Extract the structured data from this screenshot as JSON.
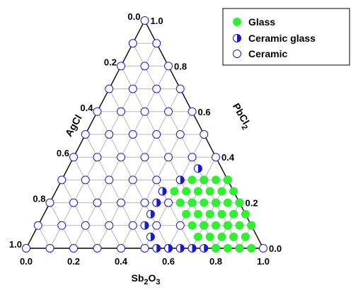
{
  "chart_data": {
    "type": "scatter",
    "subtype": "ternary",
    "title": "",
    "axes": {
      "bottom": {
        "label_main": "Sb",
        "label_sub1": "2",
        "label_mid": "O",
        "label_sub2": "3",
        "ticks": [
          "0.0",
          "0.2",
          "0.4",
          "0.6",
          "0.8",
          "1.0"
        ]
      },
      "left": {
        "label": "AgCl",
        "ticks": [
          "0.0",
          "0.2",
          "0.4",
          "0.6",
          "0.8",
          "1.0"
        ]
      },
      "right": {
        "label_main": "PbCl",
        "label_sub": "2",
        "ticks": [
          "1.0",
          "0.8",
          "0.6",
          "0.4",
          "0.2",
          "0.0"
        ]
      }
    },
    "grid": true,
    "grid_step": 0.1,
    "legend": {
      "placement": "top-right",
      "items": [
        {
          "name": "Glass",
          "marker": "filled"
        },
        {
          "name": "Ceramic glass",
          "marker": "half"
        },
        {
          "name": "Ceramic",
          "marker": "open"
        }
      ]
    },
    "colors": {
      "glass": "#33ee33",
      "ceramic": "#1a1acc",
      "axis": "#000000",
      "grid": "#b8b8b8"
    },
    "composition_step": 0.05,
    "series": [
      {
        "name": "Glass",
        "points": [
          [
            0.8,
            0.2
          ],
          [
            0.75,
            0.25
          ],
          [
            0.7,
            0.3
          ],
          [
            0.85,
            0.15
          ],
          [
            0.8,
            0.15
          ],
          [
            0.75,
            0.2
          ],
          [
            0.7,
            0.25
          ],
          [
            0.65,
            0.3
          ],
          [
            0.9,
            0.1
          ],
          [
            0.85,
            0.1
          ],
          [
            0.8,
            0.1
          ],
          [
            0.75,
            0.15
          ],
          [
            0.7,
            0.2
          ],
          [
            0.65,
            0.25
          ],
          [
            0.6,
            0.3
          ],
          [
            0.9,
            0.05
          ],
          [
            0.85,
            0.05
          ],
          [
            0.8,
            0.05
          ],
          [
            0.75,
            0.1
          ],
          [
            0.7,
            0.15
          ],
          [
            0.65,
            0.2
          ],
          [
            0.6,
            0.25
          ],
          [
            0.55,
            0.3
          ],
          [
            0.95,
            0.0
          ],
          [
            0.9,
            0.0
          ],
          [
            0.85,
            0.0
          ],
          [
            0.8,
            0.0
          ],
          [
            0.75,
            0.05
          ],
          [
            0.7,
            0.1
          ],
          [
            0.65,
            0.15
          ],
          [
            0.6,
            0.2
          ],
          [
            0.55,
            0.25
          ],
          [
            0.7,
            0.05
          ],
          [
            0.65,
            0.1
          ],
          [
            0.6,
            0.15
          ],
          [
            0.55,
            0.2
          ],
          [
            0.5,
            0.25
          ]
        ]
      },
      {
        "name": "Ceramic glass",
        "points": [
          [
            0.7,
            0.0
          ],
          [
            0.75,
            0.0
          ],
          [
            0.65,
            0.0
          ],
          [
            0.6,
            0.0
          ],
          [
            0.55,
            0.0
          ],
          [
            0.5,
            0.05
          ],
          [
            0.45,
            0.1
          ],
          [
            0.45,
            0.15
          ],
          [
            0.45,
            0.2
          ],
          [
            0.45,
            0.25
          ],
          [
            0.5,
            0.3
          ],
          [
            0.55,
            0.35
          ]
        ]
      },
      {
        "name": "Ceramic",
        "points": [
          [
            0.0,
            0.0
          ],
          [
            0.1,
            0.0
          ],
          [
            0.2,
            0.0
          ],
          [
            0.3,
            0.0
          ],
          [
            0.4,
            0.0
          ],
          [
            0.5,
            0.0
          ],
          [
            0.6,
            0.0
          ],
          [
            0.7,
            0.0
          ],
          [
            0.8,
            0.0
          ],
          [
            0.9,
            0.0
          ],
          [
            1.0,
            0.0
          ],
          [
            0.0,
            0.1
          ],
          [
            0.1,
            0.1
          ],
          [
            0.2,
            0.1
          ],
          [
            0.3,
            0.1
          ],
          [
            0.4,
            0.1
          ],
          [
            0.5,
            0.1
          ],
          [
            0.6,
            0.1
          ],
          [
            0.7,
            0.1
          ],
          [
            0.8,
            0.1
          ],
          [
            0.9,
            0.1
          ],
          [
            0.0,
            0.2
          ],
          [
            0.1,
            0.2
          ],
          [
            0.2,
            0.2
          ],
          [
            0.3,
            0.2
          ],
          [
            0.4,
            0.2
          ],
          [
            0.5,
            0.2
          ],
          [
            0.6,
            0.2
          ],
          [
            0.7,
            0.2
          ],
          [
            0.8,
            0.2
          ],
          [
            0.0,
            0.3
          ],
          [
            0.1,
            0.3
          ],
          [
            0.2,
            0.3
          ],
          [
            0.3,
            0.3
          ],
          [
            0.4,
            0.3
          ],
          [
            0.5,
            0.3
          ],
          [
            0.6,
            0.3
          ],
          [
            0.7,
            0.3
          ],
          [
            0.0,
            0.4
          ],
          [
            0.1,
            0.4
          ],
          [
            0.2,
            0.4
          ],
          [
            0.3,
            0.4
          ],
          [
            0.4,
            0.4
          ],
          [
            0.5,
            0.4
          ],
          [
            0.6,
            0.4
          ],
          [
            0.0,
            0.5
          ],
          [
            0.1,
            0.5
          ],
          [
            0.2,
            0.5
          ],
          [
            0.3,
            0.5
          ],
          [
            0.4,
            0.5
          ],
          [
            0.5,
            0.5
          ],
          [
            0.0,
            0.6
          ],
          [
            0.1,
            0.6
          ],
          [
            0.2,
            0.6
          ],
          [
            0.3,
            0.6
          ],
          [
            0.4,
            0.6
          ],
          [
            0.0,
            0.7
          ],
          [
            0.1,
            0.7
          ],
          [
            0.2,
            0.7
          ],
          [
            0.3,
            0.7
          ],
          [
            0.0,
            0.8
          ],
          [
            0.1,
            0.8
          ],
          [
            0.2,
            0.8
          ],
          [
            0.0,
            0.9
          ],
          [
            0.1,
            0.9
          ],
          [
            0.0,
            1.0
          ]
        ]
      }
    ]
  }
}
